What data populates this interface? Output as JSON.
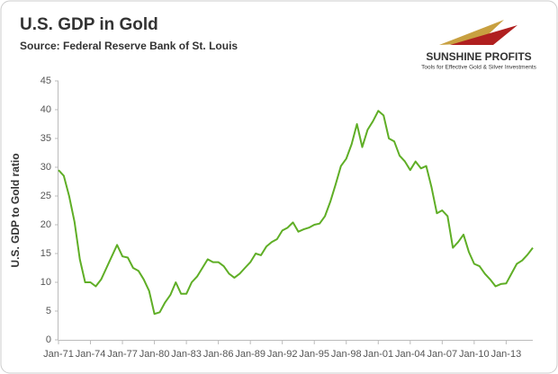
{
  "chart_data": {
    "type": "line",
    "title": "U.S. GDP in Gold",
    "subtitle": "Source: Federal Reserve Bank of St. Louis",
    "brand": "SUNSHINE PROFITS",
    "tagline": "Tools for Effective Gold & Silver Investments",
    "y_label": "U.S. GDP to Gold ratio",
    "categories": [
      "Jan-71",
      null,
      null,
      null,
      null,
      null,
      "Jan-74",
      null,
      null,
      null,
      null,
      null,
      "Jan-77",
      null,
      null,
      null,
      null,
      null,
      "Jan-80",
      null,
      null,
      null,
      null,
      null,
      "Jan-83",
      null,
      null,
      null,
      null,
      null,
      "Jan-86",
      null,
      null,
      null,
      null,
      null,
      "Jan-89",
      null,
      null,
      null,
      null,
      null,
      "Jan-92",
      null,
      null,
      null,
      null,
      null,
      "Jan-95",
      null,
      null,
      null,
      null,
      null,
      "Jan-98",
      null,
      null,
      null,
      null,
      null,
      "Jan-01",
      null,
      null,
      null,
      null,
      null,
      "Jan-04",
      null,
      null,
      null,
      null,
      null,
      "Jan-07",
      null,
      null,
      null,
      null,
      null,
      "Jan-10",
      null,
      null,
      null,
      null,
      null,
      "Jan-13",
      null,
      null,
      null,
      null,
      null
    ],
    "series": [
      {
        "name": "U.S. GDP to Gold ratio",
        "color": "#5fae26",
        "values": [
          29.5,
          28.5,
          25,
          20.5,
          14,
          10,
          10,
          9.3,
          10.5,
          12.5,
          14.5,
          16.5,
          14.5,
          14.3,
          12.5,
          12,
          10.5,
          8.5,
          4.5,
          4.8,
          6.5,
          7.8,
          10,
          8,
          8,
          10,
          11,
          12.5,
          14,
          13.5,
          13.5,
          12.8,
          11.5,
          10.8,
          11.5,
          12.5,
          13.5,
          15,
          14.7,
          16.2,
          17,
          17.5,
          19,
          19.5,
          20.4,
          18.8,
          19.2,
          19.5,
          20,
          20.2,
          21.5,
          24,
          27,
          30.2,
          31.5,
          34,
          37.5,
          33.5,
          36.5,
          38,
          39.8,
          39,
          35,
          34.5,
          32,
          31,
          29.5,
          31,
          29.8,
          30.2,
          26.5,
          22,
          22.5,
          21.5,
          16,
          17,
          18.3,
          15.3,
          13.2,
          12.8,
          11.5,
          10.5,
          9.3,
          9.7,
          9.8,
          11.5,
          13.2,
          13.8,
          14.8,
          16
        ]
      }
    ],
    "ylim": [
      0,
      45
    ],
    "yticks": [
      0,
      5,
      10,
      15,
      20,
      25,
      30,
      35,
      40,
      45
    ],
    "grid": false
  }
}
